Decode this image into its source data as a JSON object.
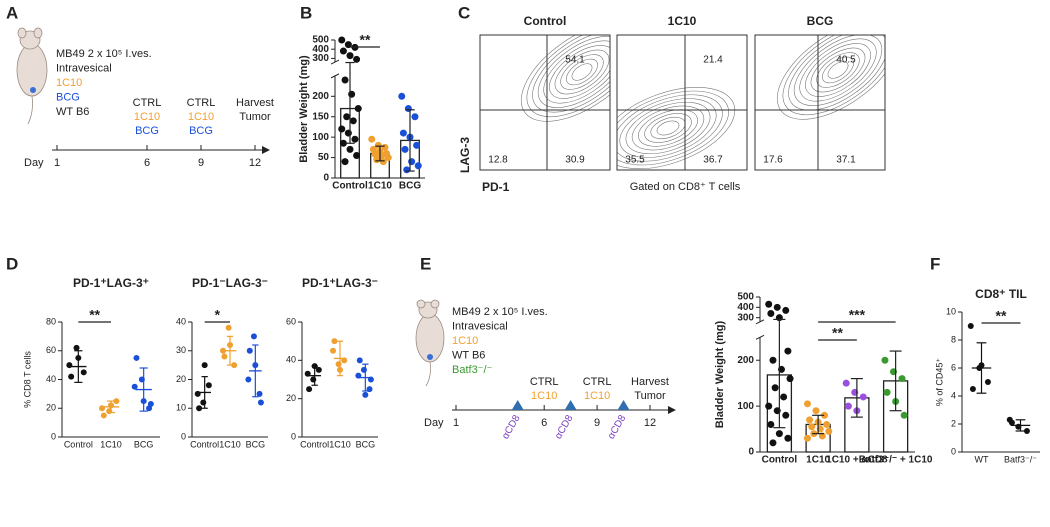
{
  "protocol_a": {
    "letter": "A",
    "lines": [
      {
        "text": "MB49 2 x 10⁵ I.ves.",
        "color": "#222222"
      },
      {
        "text": "Intravesical",
        "color": "#222222"
      },
      {
        "text": "1C10",
        "color": "#f0a030"
      },
      {
        "text": "BCG",
        "color": "#1a4fd8"
      },
      {
        "text": "WT B6",
        "color": "#222222"
      }
    ],
    "day_label": "Day",
    "days": [
      1,
      6,
      9,
      12
    ],
    "events": [
      {
        "day": 6,
        "lines": [
          {
            "text": "CTRL",
            "color": "#222222"
          },
          {
            "text": "1C10",
            "color": "#f0a030"
          },
          {
            "text": "BCG",
            "color": "#1a4fd8"
          }
        ]
      },
      {
        "day": 9,
        "lines": [
          {
            "text": "CTRL",
            "color": "#222222"
          },
          {
            "text": "1C10",
            "color": "#f0a030"
          },
          {
            "text": "BCG",
            "color": "#1a4fd8"
          }
        ]
      },
      {
        "day": 12,
        "lines": [
          {
            "text": "Harvest",
            "color": "#222222"
          },
          {
            "text": "Tumor",
            "color": "#222222"
          }
        ]
      }
    ]
  },
  "flow_c": {
    "letter": "C",
    "y_label": "LAG-3",
    "x_label": "PD-1",
    "note": "Gated on CD8⁺ T cells",
    "plots": [
      {
        "title": "Control",
        "upper_right": 54.1,
        "lower_left": 12.8,
        "lower_right": 30.9
      },
      {
        "title": "1C10",
        "upper_right": 21.4,
        "lower_left": 35.5,
        "lower_right": 36.7
      },
      {
        "title": "BCG",
        "upper_right": 40.5,
        "lower_left": 17.6,
        "lower_right": 37.1
      }
    ]
  },
  "protocol_e": {
    "letter": "E",
    "lines": [
      {
        "text": "MB49 2 x 10⁵ I.ves.",
        "color": "#222222"
      },
      {
        "text": "Intravesical",
        "color": "#222222"
      },
      {
        "text": "1C10",
        "color": "#f0a030"
      },
      {
        "text": "WT B6",
        "color": "#222222"
      },
      {
        "text": "Batf3⁻/⁻",
        "color": "#3a9a30"
      }
    ],
    "day_label": "Day",
    "days": [
      1,
      6,
      9,
      12
    ],
    "events": [
      {
        "day": 6,
        "lines": [
          {
            "text": "CTRL",
            "color": "#222222"
          },
          {
            "text": "1C10",
            "color": "#f0a030"
          }
        ]
      },
      {
        "day": 9,
        "lines": [
          {
            "text": "CTRL",
            "color": "#222222"
          },
          {
            "text": "1C10",
            "color": "#f0a030"
          }
        ]
      },
      {
        "day": 12,
        "lines": [
          {
            "text": "Harvest",
            "color": "#222222"
          },
          {
            "text": "Tumor",
            "color": "#222222"
          }
        ]
      }
    ],
    "treatments": [
      {
        "day": 4.5,
        "label": "αCD8"
      },
      {
        "day": 7.5,
        "label": "αCD8"
      },
      {
        "day": 10.5,
        "label": "αCD8"
      }
    ],
    "treatment_color": "#2f6fb0",
    "treatment_label_color": "#7b3fc4"
  },
  "chart_data": [
    {
      "type": "bar",
      "letter": "B",
      "ylabel": "Bladder Weight (mg)",
      "categories": [
        "Control",
        "1C10",
        "BCG"
      ],
      "colors": [
        "#111111",
        "#f0a030",
        "#1a4fd8"
      ],
      "values": [
        170,
        60,
        92
      ],
      "errors": [
        85,
        18,
        75
      ],
      "points": [
        [
          500,
          450,
          420,
          380,
          330,
          290,
          240,
          205,
          170,
          150,
          140,
          120,
          110,
          95,
          85,
          70,
          55,
          40
        ],
        [
          95,
          80,
          75,
          70,
          65,
          60,
          58,
          55,
          50,
          45,
          40
        ],
        [
          200,
          170,
          150,
          110,
          100,
          80,
          70,
          40,
          30,
          20
        ]
      ],
      "ylim": [
        0,
        500
      ],
      "ysegments": [
        [
          0,
          250
        ],
        [
          260,
          500
        ]
      ],
      "yticks": [
        0,
        50,
        100,
        150,
        200,
        300,
        400,
        500
      ],
      "annotations": [
        {
          "text": "**",
          "between": [
            0,
            1
          ]
        }
      ]
    },
    {
      "type": "dot",
      "letter": "D",
      "title": "PD-1⁺LAG-3⁺",
      "ylabel": "% CD8 T cells",
      "categories": [
        "Control",
        "1C10",
        "BCG"
      ],
      "colors": [
        "#111111",
        "#f0a030",
        "#1a4fd8"
      ],
      "values": [
        49,
        21,
        33
      ],
      "errors": [
        11,
        4,
        15
      ],
      "points": [
        [
          50,
          62,
          45,
          42,
          55
        ],
        [
          20,
          18,
          25,
          15,
          22
        ],
        [
          35,
          40,
          20,
          55,
          25,
          23
        ]
      ],
      "ylim": [
        0,
        80
      ],
      "yticks": [
        0,
        20,
        40,
        60,
        80
      ],
      "annotations": [
        {
          "text": "**",
          "between": [
            0,
            1
          ]
        }
      ]
    },
    {
      "type": "dot",
      "title": "PD-1⁻LAG-3⁻",
      "categories": [
        "Control",
        "1C10",
        "BCG"
      ],
      "colors": [
        "#111111",
        "#f0a030",
        "#1a4fd8"
      ],
      "values": [
        15.5,
        30,
        23
      ],
      "errors": [
        5.5,
        5,
        9
      ],
      "points": [
        [
          15,
          12,
          18,
          10,
          25
        ],
        [
          30,
          38,
          25,
          28,
          32
        ],
        [
          20,
          35,
          15,
          30,
          25,
          12
        ]
      ],
      "ylim": [
        0,
        40
      ],
      "yticks": [
        0,
        10,
        20,
        30,
        40
      ],
      "annotations": [
        {
          "text": "*",
          "between": [
            0,
            1
          ]
        }
      ]
    },
    {
      "type": "dot",
      "title": "PD-1⁺LAG-3⁻",
      "categories": [
        "Control",
        "1C10",
        "BCG"
      ],
      "colors": [
        "#111111",
        "#f0a030",
        "#1a4fd8"
      ],
      "values": [
        32,
        41,
        31
      ],
      "errors": [
        5,
        9,
        7
      ],
      "points": [
        [
          33,
          30,
          35,
          25,
          37
        ],
        [
          45,
          38,
          40,
          50,
          35
        ],
        [
          32,
          35,
          25,
          40,
          22,
          30
        ]
      ],
      "ylim": [
        0,
        60
      ],
      "yticks": [
        0,
        20,
        40,
        60
      ],
      "annotations": []
    },
    {
      "type": "bar",
      "ylabel": "Bladder Weight (mg)",
      "categories": [
        "Control",
        "1C10",
        "1C10 + αCD8",
        "Batf3⁻/⁻ + 1C10"
      ],
      "colors": [
        "#111111",
        "#f0a030",
        "#9b4fe0",
        "#3a9a30"
      ],
      "values": [
        168,
        60,
        118,
        155
      ],
      "errors": [
        115,
        20,
        42,
        65
      ],
      "points": [
        [
          430,
          400,
          370,
          340,
          300,
          220,
          200,
          180,
          160,
          140,
          120,
          100,
          90,
          80,
          60,
          40,
          30,
          20
        ],
        [
          105,
          90,
          80,
          70,
          65,
          60,
          55,
          50,
          45,
          40,
          35,
          30
        ],
        [
          150,
          130,
          120,
          100,
          90
        ],
        [
          200,
          175,
          160,
          130,
          110,
          80
        ]
      ],
      "ylim": [
        0,
        500
      ],
      "ysegments": [
        [
          0,
          250
        ],
        [
          260,
          500
        ]
      ],
      "yticks": [
        0,
        100,
        200,
        300,
        400,
        500
      ],
      "annotations": [
        {
          "text": "**",
          "between": [
            1,
            2
          ]
        },
        {
          "text": "***",
          "between": [
            1,
            3
          ]
        }
      ]
    },
    {
      "type": "dot",
      "letter": "F",
      "title": "CD8⁺ TIL",
      "ylabel": "% of CD45⁺",
      "categories": [
        "WT",
        "Batf3⁻/⁻"
      ],
      "colors": [
        "#111111",
        "#111111"
      ],
      "values": [
        6,
        1.9
      ],
      "errors": [
        1.8,
        0.4
      ],
      "points": [
        [
          9,
          6,
          5,
          4.5,
          6.2
        ],
        [
          2.3,
          1.8,
          1.5,
          2.1
        ]
      ],
      "ylim": [
        0,
        10
      ],
      "yticks": [
        0,
        2,
        4,
        6,
        8,
        10
      ],
      "annotations": [
        {
          "text": "**",
          "between": [
            0,
            1
          ]
        }
      ]
    }
  ]
}
